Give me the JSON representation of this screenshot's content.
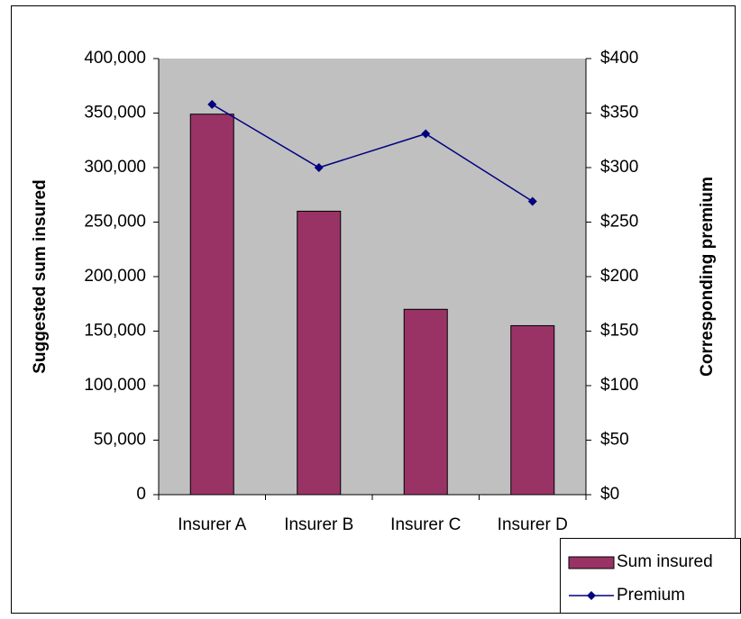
{
  "chart_data": {
    "type": "bar",
    "categories": [
      "Insurer A",
      "Insurer B",
      "Insurer C",
      "Insurer D"
    ],
    "y_label": "Suggested sum insured",
    "y2_label": "Corresponding premium",
    "series": [
      {
        "name": "Sum insured",
        "type": "bar",
        "color": "#993366",
        "values": [
          349000,
          260000,
          170000,
          155000
        ]
      },
      {
        "name": "Premium",
        "type": "line",
        "axis": "y2",
        "color": "#000080",
        "values": [
          358,
          300,
          331,
          269
        ]
      }
    ],
    "ylim": [
      0,
      400000
    ],
    "yticks": [
      {
        "value": 400000,
        "label": "400,000"
      },
      {
        "value": 350000,
        "label": "350,000"
      },
      {
        "value": 300000,
        "label": "300,000"
      },
      {
        "value": 250000,
        "label": "250,000"
      },
      {
        "value": 200000,
        "label": "200,000"
      },
      {
        "value": 150000,
        "label": "150,000"
      },
      {
        "value": 100000,
        "label": "100,000"
      },
      {
        "value": 50000,
        "label": "50,000"
      },
      0
    ],
    "y2lim": [
      0,
      400
    ],
    "y2ticks": [
      {
        "value": 400,
        "label": "$400"
      },
      {
        "value": 350,
        "label": "$350"
      },
      {
        "value": 300,
        "label": "$300"
      },
      {
        "value": 250,
        "label": "$250"
      },
      {
        "value": 200,
        "label": "$200"
      },
      {
        "value": 150,
        "label": "$150"
      },
      {
        "value": 100,
        "label": "$100"
      },
      {
        "value": 50,
        "label": "$50"
      },
      {
        "value": 0,
        "label": "$0"
      }
    ],
    "plot_background": "#c0c0c0",
    "grid": false,
    "legend": "bottom-right"
  }
}
